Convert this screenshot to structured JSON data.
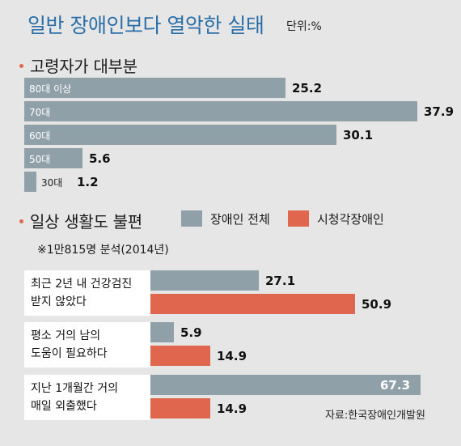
{
  "header": {
    "title": "일반 장애인보다 열악한 실태",
    "unit": "단위:%"
  },
  "colors": {
    "title": "#2b6fa8",
    "gray_series": "#8fa0a8",
    "red_series": "#e0664e",
    "background": "#e6e6e6"
  },
  "chart_data": [
    {
      "type": "bar",
      "orientation": "horizontal",
      "title": "고령자가 대부분",
      "categories": [
        "80대 이상",
        "70대",
        "60대",
        "50대",
        "30대"
      ],
      "values": [
        25.2,
        37.9,
        30.1,
        5.6,
        1.2
      ],
      "value_labels": [
        "25.2",
        "37.9",
        "30.1",
        "5.6",
        "1.2"
      ],
      "xlim": [
        0,
        37.9
      ]
    },
    {
      "type": "bar",
      "orientation": "horizontal",
      "title": "일상 생활도 불편",
      "note": "※1만815명 분석(2014년)",
      "legend": [
        "장애인 전체",
        "시청각장애인"
      ],
      "categories": [
        [
          "최근 2년 내 건강검진",
          "받지 않았다"
        ],
        [
          "평소 거의 남의",
          "도움이 필요하다"
        ],
        [
          "지난 1개월간 거의",
          "매일 외출했다"
        ]
      ],
      "series": [
        {
          "name": "장애인 전체",
          "values": [
            27.1,
            5.9,
            67.3
          ],
          "value_labels": [
            "27.1",
            "5.9",
            "67.3"
          ]
        },
        {
          "name": "시청각장애인",
          "values": [
            50.9,
            14.9,
            14.9
          ],
          "value_labels": [
            "50.9",
            "14.9",
            "14.9"
          ]
        }
      ],
      "xlim": [
        0,
        67.3
      ]
    }
  ],
  "source": "자료:한국장애인개발원"
}
